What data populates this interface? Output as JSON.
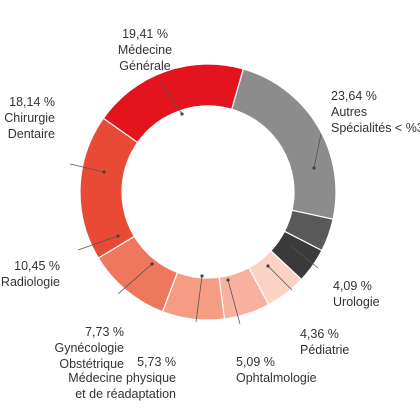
{
  "chart_data": {
    "type": "pie",
    "donut": true,
    "start_category": "Autres Spécialités < %3",
    "direction": "clockwise",
    "slices": [
      {
        "value": 23.64,
        "value_label": "23,64 %",
        "label_lines": [
          "Autres",
          "Spécialités < %3"
        ],
        "color": "#8c8c8c"
      },
      {
        "value": 4.09,
        "value_label": "4,09 %",
        "label_lines": [
          "Urologie"
        ],
        "color": "#595959"
      },
      {
        "value": 4.36,
        "value_label": "4,36 %",
        "label_lines": [
          "Pédiatrie"
        ],
        "color": "#3a3a3a"
      },
      {
        "value": 5.09,
        "value_label": "5,09 %",
        "label_lines": [
          "Ophtalmologie"
        ],
        "color": "#fcd2c2"
      },
      {
        "value": 5.73,
        "value_label": "5,73 %",
        "label_lines": [
          "Médecine physique",
          "et de réadaptation"
        ],
        "color": "#f8b19f"
      },
      {
        "value": 7.73,
        "value_label": "7,73 %",
        "label_lines": [
          "Gynécologie",
          "Obstétrique"
        ],
        "color": "#f59c84"
      },
      {
        "value": 10.45,
        "value_label": "10,45 %",
        "label_lines": [
          "Radiologie"
        ],
        "color": "#ee775d"
      },
      {
        "value": 18.14,
        "value_label": "18,14 %",
        "label_lines": [
          "Chirurgie",
          "Dentaire"
        ],
        "color": "#e94a35"
      },
      {
        "value": 19.41,
        "value_label": "19,41 %",
        "label_lines": [
          "Médecine",
          "Générale"
        ],
        "color": "#e3141d"
      }
    ]
  }
}
